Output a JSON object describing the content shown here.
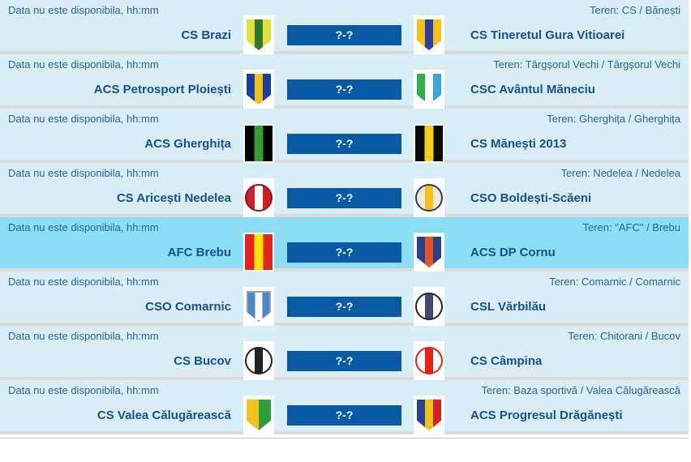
{
  "colors": {
    "row_bg": "#d9edf7",
    "row_bg_highlight": "#8cdef4",
    "gap_bg": "#dcdbd8",
    "meta_text": "#2a6496",
    "team_text": "#15518f",
    "score_bg": "#0a59a4",
    "score_text": "#ffffff"
  },
  "matches": [
    {
      "datetime_label": "Data nu este disponibila, hh:mm",
      "venue_label": "Teren: CS / Bănești",
      "score_label": "?-?",
      "highlighted": false,
      "home": {
        "name": "CS Brazi",
        "logo": {
          "shape": "shield",
          "colors": [
            "#dfe03a",
            "#2c7a2c",
            "#dfe03a"
          ]
        }
      },
      "away": {
        "name": "CS Tineretul Gura Vitioarei",
        "logo": {
          "shape": "shield",
          "colors": [
            "#f2c21a",
            "#2a3f9e",
            "#f2c21a"
          ]
        }
      }
    },
    {
      "datetime_label": "Data nu este disponibila, hh:mm",
      "venue_label": "Teren: Târgșorul Vechi / Târgșorul Vechi",
      "score_label": "?-?",
      "highlighted": false,
      "home": {
        "name": "ACS Petrosport Ploiești",
        "logo": {
          "shape": "shield",
          "colors": [
            "#1c3f9b",
            "#f2c21a",
            "#1c3f9b"
          ]
        }
      },
      "away": {
        "name": "CSC Avântul Măneciu",
        "logo": {
          "shape": "shield",
          "colors": [
            "#2fae4a",
            "#ffffff",
            "#3aa5da"
          ]
        }
      }
    },
    {
      "datetime_label": "Data nu este disponibila, hh:mm",
      "venue_label": "Teren: Gherghița / Gherghița",
      "score_label": "?-?",
      "highlighted": false,
      "home": {
        "name": "ACS Gherghița",
        "logo": {
          "shape": "square",
          "colors": [
            "#000000",
            "#3a9a35",
            "#000000"
          ]
        }
      },
      "away": {
        "name": "CS Mănești 2013",
        "logo": {
          "shape": "square",
          "colors": [
            "#0a0a0a",
            "#f2cf1c",
            "#0a0a0a"
          ]
        }
      }
    },
    {
      "datetime_label": "Data nu este disponibila, hh:mm",
      "venue_label": "Teren: Nedelea / Nedelea",
      "score_label": "?-?",
      "highlighted": false,
      "home": {
        "name": "CS Aricești Nedelea",
        "logo": {
          "shape": "circle",
          "colors": [
            "#cf2127",
            "#ffffff",
            "#cf2127"
          ],
          "ring": "#8a1418"
        }
      },
      "away": {
        "name": "CSO Boldești-Scăeni",
        "logo": {
          "shape": "circle",
          "colors": [
            "#f0ead0",
            "#f2c21a",
            "#f0ead0"
          ],
          "ring": "#2a3a7c"
        }
      }
    },
    {
      "datetime_label": "Data nu este disponibila, hh:mm",
      "venue_label": "Teren: \"AFC\" / Brebu",
      "score_label": "?-?",
      "highlighted": true,
      "home": {
        "name": "AFC Brebu",
        "logo": {
          "shape": "square",
          "colors": [
            "#e3241f",
            "#ffe600",
            "#e3241f"
          ]
        }
      },
      "away": {
        "name": "ACS DP Cornu",
        "logo": {
          "shape": "shield",
          "colors": [
            "#2b3f8f",
            "#e8542a",
            "#2b3f8f"
          ]
        }
      }
    },
    {
      "datetime_label": "Data nu este disponibila, hh:mm",
      "venue_label": "Teren: Comarnic / Comarnic",
      "score_label": "?-?",
      "highlighted": false,
      "home": {
        "name": "CSO Comarnic",
        "logo": {
          "shape": "shield",
          "colors": [
            "#4a86c8",
            "#ffffff",
            "#4a86c8"
          ],
          "ring": "#9aa0a6"
        }
      },
      "away": {
        "name": "CSL Vărbilău",
        "logo": {
          "shape": "circle",
          "colors": [
            "#ffffff",
            "#44486e",
            "#ffffff"
          ],
          "ring": "#222222"
        }
      }
    },
    {
      "datetime_label": "Data nu este disponibila, hh:mm",
      "venue_label": "Teren: Chitorani / Bucov",
      "score_label": "?-?",
      "highlighted": false,
      "home": {
        "name": "CS Bucov",
        "logo": {
          "shape": "circle",
          "colors": [
            "#ffffff",
            "#222222",
            "#ffffff"
          ],
          "ring": "#222222"
        }
      },
      "away": {
        "name": "CS Câmpina",
        "logo": {
          "shape": "circle",
          "colors": [
            "#ffffff",
            "#e32219",
            "#ffffff"
          ],
          "ring": "#e32219"
        }
      }
    },
    {
      "datetime_label": "Data nu este disponibila, hh:mm",
      "venue_label": "Teren: Baza sportivă / Valea Călugărească",
      "score_label": "?-?",
      "highlighted": false,
      "home": {
        "name": "CS Valea Călugărească",
        "logo": {
          "shape": "shield",
          "colors": [
            "#f2c21a",
            "#2f9e3e"
          ]
        }
      },
      "away": {
        "name": "ACS Progresul Drăgănești",
        "logo": {
          "shape": "shield",
          "colors": [
            "#2b3f8f",
            "#f2c21a",
            "#d42027"
          ]
        }
      }
    }
  ]
}
